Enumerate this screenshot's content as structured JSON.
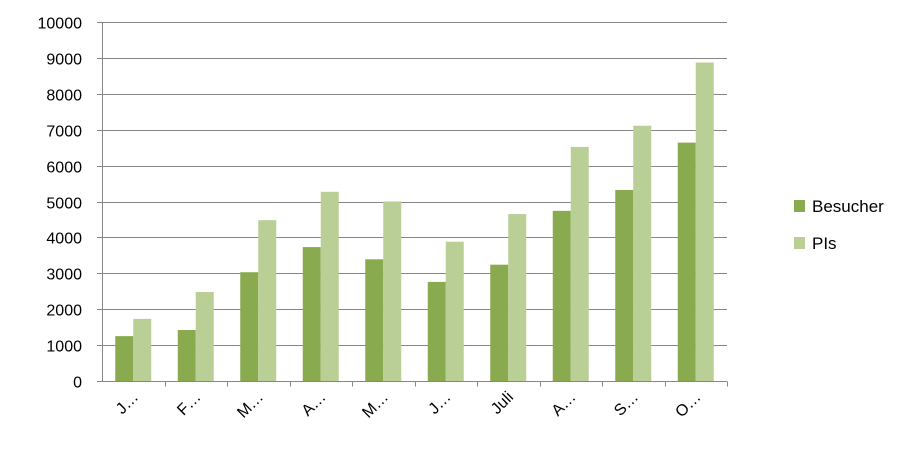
{
  "chart_data": {
    "type": "bar",
    "categories": [
      "J…",
      "F…",
      "M…",
      "A…",
      "M…",
      "J…",
      "Juli",
      "A…",
      "S…",
      "O…"
    ],
    "series": [
      {
        "name": "Besucher",
        "color": "#8aaa4f",
        "values": [
          1250,
          1420,
          3030,
          3730,
          3390,
          2760,
          3240,
          4740,
          5320,
          6640
        ]
      },
      {
        "name": "PIs",
        "color": "#b9cf96",
        "values": [
          1730,
          2480,
          4480,
          5270,
          5000,
          3880,
          4650,
          6520,
          7110,
          8870
        ]
      }
    ],
    "yticks": [
      "0",
      "1000",
      "2000",
      "3000",
      "4000",
      "5000",
      "6000",
      "7000",
      "8000",
      "9000",
      "10000"
    ],
    "ylim": [
      0,
      10000
    ],
    "grid": true,
    "legend_position": "right"
  }
}
